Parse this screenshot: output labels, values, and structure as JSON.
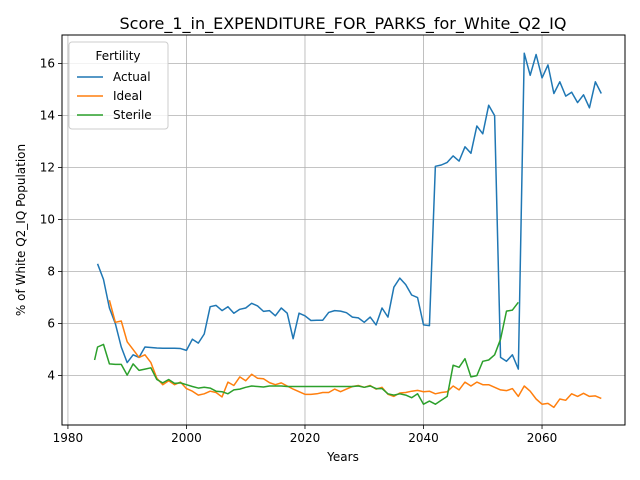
{
  "chart_data": {
    "type": "line",
    "title": "Score_1_in_EXPENDITURE_FOR_PARKS_for_White_Q2_IQ",
    "xlabel": "Years",
    "ylabel": "% of White Q2_IQ Population",
    "xlim": [
      1979,
      2074
    ],
    "ylim": [
      2.1,
      17.1
    ],
    "xticks": [
      1980,
      2000,
      2020,
      2040,
      2060
    ],
    "yticks": [
      4,
      6,
      8,
      10,
      12,
      14,
      16
    ],
    "grid": true,
    "legend": {
      "title": "Fertility",
      "placement": "top-left"
    },
    "series": [
      {
        "name": "Actual",
        "color": "#1f77b4",
        "points": [
          [
            1985,
            8.3
          ],
          [
            1986,
            7.7
          ],
          [
            1987,
            6.6
          ],
          [
            1988,
            6.0
          ],
          [
            1989,
            5.1
          ],
          [
            1990,
            4.5
          ],
          [
            1991,
            4.8
          ],
          [
            1992,
            4.7
          ],
          [
            1993,
            5.1
          ],
          [
            1994,
            5.08
          ],
          [
            1995,
            5.06
          ],
          [
            1996,
            5.05
          ],
          [
            1997,
            5.05
          ],
          [
            1998,
            5.05
          ],
          [
            1999,
            5.04
          ],
          [
            2000,
            4.97
          ],
          [
            2001,
            5.4
          ],
          [
            2002,
            5.25
          ],
          [
            2003,
            5.6
          ],
          [
            2004,
            6.65
          ],
          [
            2005,
            6.7
          ],
          [
            2006,
            6.5
          ],
          [
            2007,
            6.65
          ],
          [
            2008,
            6.4
          ],
          [
            2009,
            6.55
          ],
          [
            2010,
            6.6
          ],
          [
            2011,
            6.78
          ],
          [
            2012,
            6.68
          ],
          [
            2013,
            6.47
          ],
          [
            2014,
            6.5
          ],
          [
            2015,
            6.3
          ],
          [
            2016,
            6.6
          ],
          [
            2017,
            6.4
          ],
          [
            2018,
            5.42
          ],
          [
            2019,
            6.4
          ],
          [
            2020,
            6.3
          ],
          [
            2021,
            6.12
          ],
          [
            2022,
            6.13
          ],
          [
            2023,
            6.13
          ],
          [
            2024,
            6.43
          ],
          [
            2025,
            6.5
          ],
          [
            2026,
            6.48
          ],
          [
            2027,
            6.42
          ],
          [
            2028,
            6.25
          ],
          [
            2029,
            6.22
          ],
          [
            2030,
            6.05
          ],
          [
            2031,
            6.25
          ],
          [
            2032,
            5.95
          ],
          [
            2033,
            6.6
          ],
          [
            2034,
            6.25
          ],
          [
            2035,
            7.4
          ],
          [
            2036,
            7.75
          ],
          [
            2037,
            7.5
          ],
          [
            2038,
            7.1
          ],
          [
            2039,
            7.0
          ],
          [
            2040,
            5.95
          ],
          [
            2041,
            5.92
          ],
          [
            2042,
            12.05
          ],
          [
            2043,
            12.1
          ],
          [
            2044,
            12.2
          ],
          [
            2045,
            12.45
          ],
          [
            2046,
            12.25
          ],
          [
            2047,
            12.8
          ],
          [
            2048,
            12.55
          ],
          [
            2049,
            13.6
          ],
          [
            2050,
            13.3
          ],
          [
            2051,
            14.4
          ],
          [
            2052,
            14.0
          ],
          [
            2053,
            4.7
          ],
          [
            2054,
            4.55
          ],
          [
            2055,
            4.8
          ],
          [
            2056,
            4.25
          ],
          [
            2057,
            16.4
          ],
          [
            2058,
            15.55
          ],
          [
            2059,
            16.35
          ],
          [
            2060,
            15.45
          ],
          [
            2061,
            15.95
          ],
          [
            2062,
            14.85
          ],
          [
            2063,
            15.3
          ],
          [
            2064,
            14.75
          ],
          [
            2065,
            14.9
          ],
          [
            2066,
            14.5
          ],
          [
            2067,
            14.8
          ],
          [
            2068,
            14.3
          ],
          [
            2069,
            15.3
          ],
          [
            2070,
            14.85
          ]
        ]
      },
      {
        "name": "Ideal",
        "color": "#ff7f0e",
        "points": [
          [
            1987,
            6.9
          ],
          [
            1988,
            6.05
          ],
          [
            1989,
            6.1
          ],
          [
            1990,
            5.3
          ],
          [
            1991,
            5.0
          ],
          [
            1992,
            4.7
          ],
          [
            1993,
            4.8
          ],
          [
            1994,
            4.5
          ],
          [
            1995,
            3.9
          ],
          [
            1996,
            3.65
          ],
          [
            1997,
            3.8
          ],
          [
            1998,
            3.65
          ],
          [
            1999,
            3.75
          ],
          [
            2000,
            3.5
          ],
          [
            2001,
            3.4
          ],
          [
            2002,
            3.25
          ],
          [
            2003,
            3.3
          ],
          [
            2004,
            3.4
          ],
          [
            2005,
            3.35
          ],
          [
            2006,
            3.18
          ],
          [
            2007,
            3.75
          ],
          [
            2008,
            3.62
          ],
          [
            2009,
            3.95
          ],
          [
            2010,
            3.8
          ],
          [
            2011,
            4.05
          ],
          [
            2012,
            3.9
          ],
          [
            2013,
            3.88
          ],
          [
            2014,
            3.73
          ],
          [
            2015,
            3.65
          ],
          [
            2016,
            3.72
          ],
          [
            2017,
            3.6
          ],
          [
            2018,
            3.48
          ],
          [
            2019,
            3.38
          ],
          [
            2020,
            3.28
          ],
          [
            2021,
            3.28
          ],
          [
            2022,
            3.3
          ],
          [
            2023,
            3.35
          ],
          [
            2024,
            3.35
          ],
          [
            2025,
            3.48
          ],
          [
            2026,
            3.38
          ],
          [
            2027,
            3.48
          ],
          [
            2028,
            3.58
          ],
          [
            2029,
            3.62
          ],
          [
            2030,
            3.55
          ],
          [
            2031,
            3.62
          ],
          [
            2032,
            3.48
          ],
          [
            2033,
            3.55
          ],
          [
            2034,
            3.28
          ],
          [
            2035,
            3.2
          ],
          [
            2036,
            3.33
          ],
          [
            2037,
            3.35
          ],
          [
            2038,
            3.4
          ],
          [
            2039,
            3.43
          ],
          [
            2040,
            3.38
          ],
          [
            2041,
            3.4
          ],
          [
            2042,
            3.3
          ],
          [
            2043,
            3.35
          ],
          [
            2044,
            3.38
          ],
          [
            2045,
            3.6
          ],
          [
            2046,
            3.45
          ],
          [
            2047,
            3.75
          ],
          [
            2048,
            3.6
          ],
          [
            2049,
            3.75
          ],
          [
            2050,
            3.65
          ],
          [
            2051,
            3.65
          ],
          [
            2052,
            3.55
          ],
          [
            2053,
            3.45
          ],
          [
            2054,
            3.42
          ],
          [
            2055,
            3.5
          ],
          [
            2056,
            3.2
          ],
          [
            2057,
            3.6
          ],
          [
            2058,
            3.4
          ],
          [
            2059,
            3.1
          ],
          [
            2060,
            2.9
          ],
          [
            2061,
            2.93
          ],
          [
            2062,
            2.78
          ],
          [
            2063,
            3.1
          ],
          [
            2064,
            3.05
          ],
          [
            2065,
            3.3
          ],
          [
            2066,
            3.2
          ],
          [
            2067,
            3.32
          ],
          [
            2068,
            3.2
          ],
          [
            2069,
            3.22
          ],
          [
            2070,
            3.12
          ]
        ]
      },
      {
        "name": "Sterile",
        "color": "#2ca02c",
        "points": [
          [
            1984.5,
            4.6
          ],
          [
            1985,
            5.1
          ],
          [
            1986,
            5.2
          ],
          [
            1987,
            4.45
          ],
          [
            1988,
            4.43
          ],
          [
            1989,
            4.43
          ],
          [
            1990,
            4.02
          ],
          [
            1991,
            4.45
          ],
          [
            1992,
            4.2
          ],
          [
            1993,
            4.25
          ],
          [
            1994,
            4.3
          ],
          [
            1995,
            3.85
          ],
          [
            1996,
            3.72
          ],
          [
            1997,
            3.85
          ],
          [
            1998,
            3.7
          ],
          [
            1999,
            3.72
          ],
          [
            2000,
            3.65
          ],
          [
            2001,
            3.58
          ],
          [
            2002,
            3.52
          ],
          [
            2003,
            3.55
          ],
          [
            2004,
            3.52
          ],
          [
            2005,
            3.4
          ],
          [
            2006,
            3.38
          ],
          [
            2007,
            3.3
          ],
          [
            2008,
            3.45
          ],
          [
            2009,
            3.48
          ],
          [
            2010,
            3.55
          ],
          [
            2011,
            3.6
          ],
          [
            2012,
            3.58
          ],
          [
            2013,
            3.56
          ],
          [
            2014,
            3.6
          ],
          [
            2015,
            3.6
          ],
          [
            2016,
            3.6
          ],
          [
            2017,
            3.58
          ],
          [
            2018,
            3.58
          ],
          [
            2019,
            3.58
          ],
          [
            2020,
            3.58
          ],
          [
            2021,
            3.58
          ],
          [
            2022,
            3.58
          ],
          [
            2023,
            3.58
          ],
          [
            2024,
            3.58
          ],
          [
            2025,
            3.58
          ],
          [
            2026,
            3.58
          ],
          [
            2027,
            3.58
          ],
          [
            2028,
            3.58
          ],
          [
            2029,
            3.6
          ],
          [
            2030,
            3.55
          ],
          [
            2031,
            3.6
          ],
          [
            2032,
            3.5
          ],
          [
            2033,
            3.5
          ],
          [
            2034,
            3.3
          ],
          [
            2035,
            3.25
          ],
          [
            2036,
            3.3
          ],
          [
            2037,
            3.25
          ],
          [
            2038,
            3.15
          ],
          [
            2039,
            3.3
          ],
          [
            2040,
            2.9
          ],
          [
            2041,
            3.02
          ],
          [
            2042,
            2.9
          ],
          [
            2043,
            3.05
          ],
          [
            2044,
            3.2
          ],
          [
            2045,
            4.4
          ],
          [
            2046,
            4.32
          ],
          [
            2047,
            4.65
          ],
          [
            2048,
            3.95
          ],
          [
            2049,
            4.0
          ],
          [
            2050,
            4.55
          ],
          [
            2051,
            4.6
          ],
          [
            2052,
            4.8
          ],
          [
            2053,
            5.4
          ],
          [
            2054,
            6.48
          ],
          [
            2055,
            6.52
          ],
          [
            2056,
            6.82
          ]
        ]
      }
    ]
  }
}
